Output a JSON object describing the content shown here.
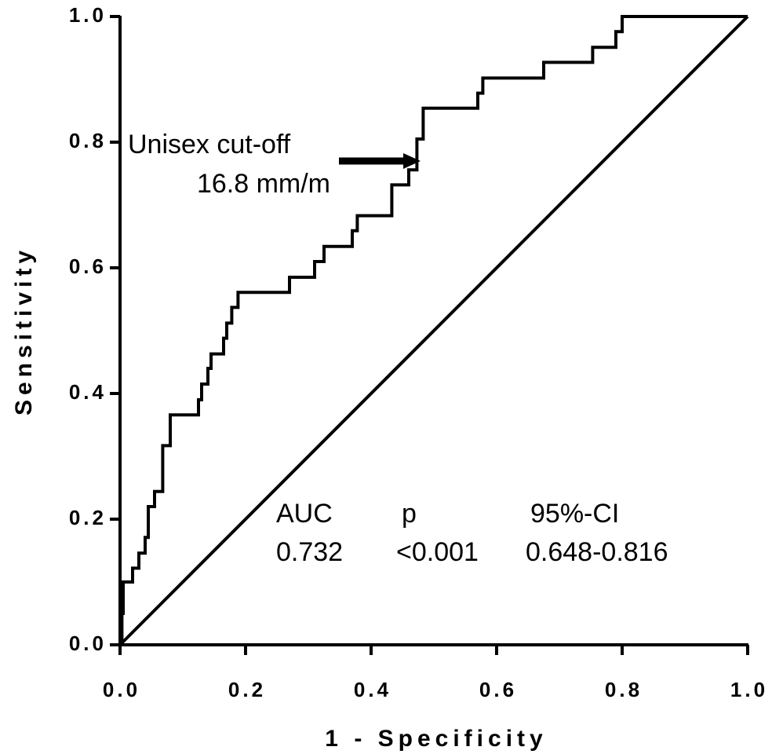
{
  "chart_data": {
    "type": "line",
    "x_label": "1 - Specificity",
    "y_label": "Sensitivity",
    "xlim": [
      0,
      1
    ],
    "ylim": [
      0,
      1
    ],
    "xticks": [
      {
        "value": 0,
        "label": "0.0"
      },
      0.2,
      0.4,
      0.6,
      0.8,
      {
        "value": 1,
        "label": "1.0"
      }
    ],
    "yticks": [
      {
        "value": 0,
        "label": "0.0"
      },
      0.2,
      0.4,
      0.6,
      0.8,
      {
        "value": 1,
        "label": "1.0"
      }
    ],
    "series": [
      {
        "color": "#000000",
        "x": [
          0,
          0.003,
          0.003,
          0.005,
          0.005,
          0.02,
          0.02,
          0.03,
          0.03,
          0.04,
          0.04,
          0.045,
          0.045,
          0.055,
          0.055,
          0.068,
          0.068,
          0.08,
          0.08,
          0.125,
          0.125,
          0.13,
          0.13,
          0.14,
          0.14,
          0.145,
          0.145,
          0.165,
          0.165,
          0.17,
          0.17,
          0.178,
          0.178,
          0.188,
          0.188,
          0.27,
          0.27,
          0.31,
          0.31,
          0.325,
          0.325,
          0.37,
          0.37,
          0.378,
          0.378,
          0.433,
          0.433,
          0.46,
          0.46,
          0.473,
          0.473,
          0.483,
          0.483,
          0.57,
          0.57,
          0.578,
          0.578,
          0.675,
          0.675,
          0.753,
          0.753,
          0.79,
          0.79,
          0.8,
          0.8,
          1.0
        ],
        "values": [
          0,
          0,
          0.05,
          0.05,
          0.1,
          0.1,
          0.122,
          0.122,
          0.146,
          0.146,
          0.171,
          0.171,
          0.22,
          0.22,
          0.244,
          0.244,
          0.317,
          0.317,
          0.366,
          0.366,
          0.39,
          0.39,
          0.415,
          0.415,
          0.44,
          0.44,
          0.463,
          0.463,
          0.488,
          0.488,
          0.512,
          0.512,
          0.537,
          0.537,
          0.561,
          0.561,
          0.585,
          0.585,
          0.61,
          0.61,
          0.634,
          0.634,
          0.659,
          0.659,
          0.683,
          0.683,
          0.732,
          0.732,
          0.756,
          0.756,
          0.805,
          0.805,
          0.854,
          0.854,
          0.878,
          0.878,
          0.902,
          0.902,
          0.927,
          0.927,
          0.951,
          0.951,
          0.976,
          0.976,
          1.0,
          1.0
        ]
      },
      {
        "color": "#000000",
        "x": [
          0,
          1
        ],
        "values": [
          0,
          1
        ]
      }
    ],
    "annotations": {
      "cutoff": [
        "Unisex cut-off",
        "16.8 mm/m"
      ],
      "stats_header": [
        "AUC",
        "p",
        "95%-CI"
      ],
      "stats_values": [
        "0.732",
        "<0.001",
        "0.648-0.816"
      ]
    }
  }
}
